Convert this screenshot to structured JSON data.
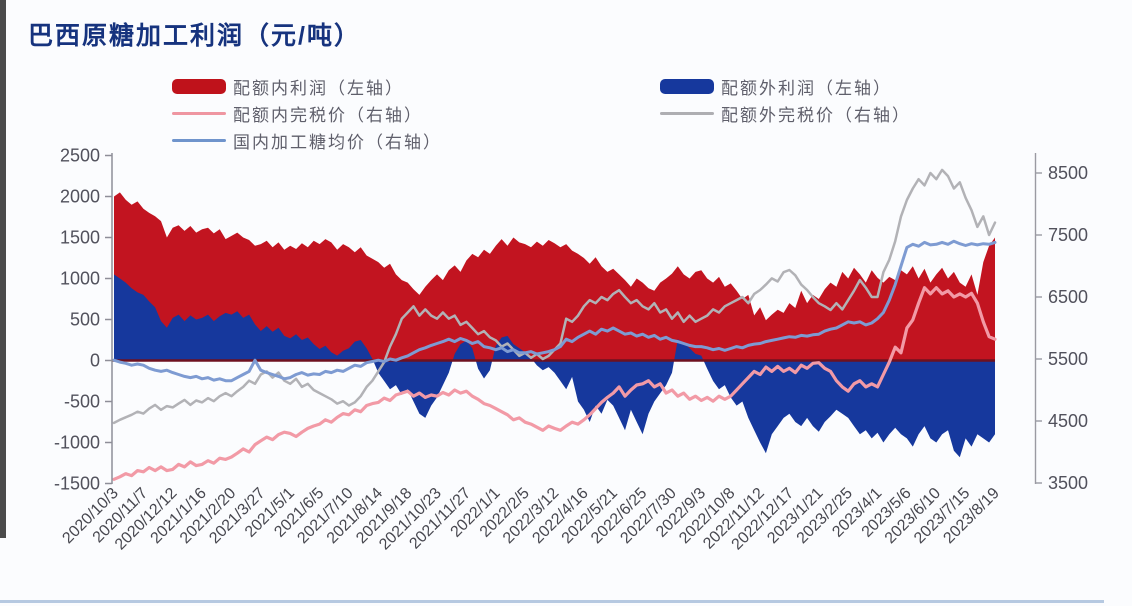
{
  "page": {
    "left_strip_color": "#4b4b4b",
    "bottom_line_color": "#a9c0dc",
    "background": "#fbfcfe"
  },
  "title": {
    "text": "巴西原糖加工利润（元/吨）",
    "color": "#16337e"
  },
  "legend": [
    {
      "label": "配额内利润（左轴）",
      "color": "#bf121b",
      "type": "bar"
    },
    {
      "label": "配额外利润（左轴）",
      "color": "#16389d",
      "type": "bar"
    },
    {
      "label": "配额内完税价（右轴）",
      "color": "#ef96a1",
      "type": "line"
    },
    {
      "label": "配额外完税价（右轴）",
      "color": "#aeaeb2",
      "type": "line"
    },
    {
      "label": "国内加工糖均价（右轴）",
      "color": "#6f94cc",
      "type": "line"
    }
  ],
  "chart_data": {
    "type": "area",
    "title": "巴西原糖加工利润（元/吨）",
    "x_labels": [
      "2020/10/3",
      "2020/11/7",
      "2020/12/12",
      "2021/1/16",
      "2021/2/20",
      "2021/3/27",
      "2021/5/1",
      "2021/6/5",
      "2021/7/10",
      "2021/8/14",
      "2021/9/18",
      "2021/10/23",
      "2021/11/27",
      "2022/1/1",
      "2022/2/5",
      "2022/3/12",
      "2022/4/16",
      "2022/5/21",
      "2022/6/25",
      "2022/7/30",
      "2022/9/3",
      "2022/10/8",
      "2022/11/12",
      "2022/12/17",
      "2023/1/21",
      "2023/2/25",
      "2023/4/1",
      "2023/5/6",
      "2023/6/10",
      "2023/7/15",
      "2023/8/19"
    ],
    "points_per_label": 5,
    "left_axis": {
      "ticks": [
        2500,
        2000,
        1500,
        1000,
        500,
        0,
        -500,
        -1000,
        -1500
      ],
      "range": [
        -1500,
        2500
      ]
    },
    "right_axis": {
      "ticks": [
        8500,
        7500,
        6500,
        5500,
        4500,
        3500
      ],
      "range": [
        3500,
        8500
      ]
    },
    "grid": false,
    "legend_position": "top",
    "series": [
      {
        "name": "配额内利润（左轴）",
        "type": "area",
        "axis": "left",
        "color": "#c21420",
        "values": [
          2000,
          2050,
          1960,
          1900,
          1940,
          1850,
          1800,
          1760,
          1700,
          1500,
          1620,
          1650,
          1580,
          1640,
          1560,
          1600,
          1620,
          1550,
          1600,
          1480,
          1520,
          1560,
          1500,
          1470,
          1400,
          1420,
          1460,
          1380,
          1440,
          1350,
          1400,
          1360,
          1430,
          1380,
          1460,
          1420,
          1480,
          1440,
          1350,
          1420,
          1380,
          1320,
          1380,
          1280,
          1240,
          1200,
          1130,
          1180,
          1050,
          980,
          950,
          870,
          800,
          900,
          980,
          1050,
          980,
          1100,
          1160,
          1080,
          1220,
          1300,
          1260,
          1350,
          1300,
          1400,
          1480,
          1400,
          1500,
          1440,
          1420,
          1380,
          1450,
          1400,
          1470,
          1430,
          1380,
          1420,
          1340,
          1300,
          1250,
          1180,
          1260,
          1150,
          1080,
          1120,
          1050,
          980,
          900,
          1000,
          950,
          880,
          850,
          950,
          1000,
          1060,
          1150,
          1050,
          1000,
          1080,
          1100,
          1000,
          950,
          1020,
          900,
          940,
          850,
          750,
          800,
          550,
          650,
          490,
          560,
          620,
          580,
          700,
          640,
          850,
          700,
          800,
          750,
          870,
          950,
          900,
          1080,
          1000,
          1130,
          1050,
          950,
          1100,
          1010,
          950,
          1020,
          980,
          1100,
          1050,
          1150,
          1000,
          1120,
          950,
          1050,
          1130,
          1000,
          1080,
          950,
          900,
          1050,
          800,
          1200,
          1400,
          1500
        ]
      },
      {
        "name": "配额外利润（左轴）",
        "type": "area",
        "axis": "left",
        "color": "#16389d",
        "values": [
          1050,
          1000,
          950,
          880,
          830,
          800,
          720,
          650,
          480,
          400,
          520,
          560,
          480,
          550,
          500,
          520,
          560,
          480,
          540,
          580,
          560,
          600,
          520,
          560,
          440,
          360,
          420,
          350,
          400,
          300,
          270,
          320,
          250,
          280,
          200,
          140,
          180,
          100,
          60,
          120,
          150,
          230,
          250,
          150,
          20,
          -150,
          -250,
          -350,
          -300,
          -420,
          -350,
          -500,
          -650,
          -700,
          -550,
          -450,
          -300,
          -150,
          80,
          200,
          240,
          150,
          -100,
          -220,
          -120,
          180,
          280,
          300,
          200,
          150,
          100,
          30,
          -60,
          -120,
          -80,
          -150,
          -250,
          -350,
          -200,
          -500,
          -600,
          -750,
          -550,
          -650,
          -480,
          -550,
          -700,
          -850,
          -600,
          -750,
          -900,
          -650,
          -500,
          -400,
          -300,
          -150,
          260,
          220,
          150,
          80,
          60,
          -100,
          -250,
          -350,
          -300,
          -450,
          -550,
          -500,
          -700,
          -850,
          -1000,
          -1130,
          -900,
          -800,
          -700,
          -650,
          -750,
          -800,
          -700,
          -800,
          -870,
          -750,
          -680,
          -600,
          -650,
          -700,
          -800,
          -900,
          -850,
          -950,
          -880,
          -1000,
          -900,
          -820,
          -900,
          -950,
          -1050,
          -900,
          -800,
          -950,
          -1000,
          -900,
          -850,
          -1100,
          -1180,
          -950,
          -1050,
          -900,
          -950,
          -1000,
          -900
        ]
      },
      {
        "name": "配额内完税价（右轴）",
        "type": "line",
        "axis": "right",
        "color": "#f29aa6",
        "values": [
          3560,
          3600,
          3650,
          3620,
          3700,
          3680,
          3750,
          3700,
          3760,
          3700,
          3720,
          3800,
          3760,
          3840,
          3780,
          3800,
          3860,
          3820,
          3900,
          3880,
          3920,
          3980,
          4050,
          4000,
          4120,
          4180,
          4240,
          4200,
          4280,
          4320,
          4300,
          4250,
          4320,
          4380,
          4420,
          4450,
          4520,
          4480,
          4560,
          4620,
          4600,
          4680,
          4650,
          4750,
          4780,
          4800,
          4870,
          4830,
          4920,
          4950,
          4980,
          4900,
          4950,
          4880,
          4920,
          4900,
          4960,
          4920,
          5000,
          4950,
          4980,
          4900,
          4850,
          4780,
          4750,
          4700,
          4650,
          4600,
          4520,
          4550,
          4480,
          4450,
          4400,
          4350,
          4420,
          4380,
          4350,
          4420,
          4480,
          4450,
          4520,
          4600,
          4700,
          4800,
          4880,
          4950,
          5050,
          4900,
          5000,
          5080,
          5100,
          5150,
          5050,
          5100,
          4950,
          5000,
          4900,
          4950,
          4850,
          4900,
          4830,
          4880,
          4820,
          4900,
          4850,
          4900,
          5000,
          5100,
          5200,
          5300,
          5250,
          5370,
          5300,
          5380,
          5300,
          5350,
          5280,
          5400,
          5350,
          5430,
          5440,
          5350,
          5300,
          5150,
          5050,
          4980,
          5100,
          5150,
          5050,
          5100,
          5050,
          5250,
          5450,
          5690,
          5600,
          6000,
          6130,
          6400,
          6650,
          6550,
          6650,
          6550,
          6600,
          6500,
          6550,
          6500,
          6560,
          6400,
          6100,
          5860,
          5820
        ]
      },
      {
        "name": "配额外完税价（右轴）",
        "type": "line",
        "axis": "right",
        "color": "#b2b2b6",
        "values": [
          4470,
          4520,
          4560,
          4600,
          4650,
          4620,
          4700,
          4760,
          4680,
          4740,
          4720,
          4780,
          4840,
          4760,
          4830,
          4800,
          4870,
          4820,
          4900,
          4950,
          4900,
          4980,
          5050,
          5150,
          5100,
          5250,
          5300,
          5200,
          5280,
          5150,
          5100,
          5180,
          5050,
          5100,
          5000,
          4950,
          4900,
          4850,
          4780,
          4820,
          4750,
          4800,
          4900,
          5050,
          5150,
          5300,
          5450,
          5700,
          5900,
          6150,
          6250,
          6350,
          6200,
          6300,
          6200,
          6150,
          6250,
          6150,
          6200,
          6050,
          6100,
          6000,
          5900,
          5950,
          5850,
          5800,
          5700,
          5750,
          5650,
          5550,
          5600,
          5520,
          5580,
          5500,
          5550,
          5650,
          5750,
          6150,
          6100,
          6200,
          6350,
          6450,
          6400,
          6500,
          6450,
          6550,
          6610,
          6500,
          6400,
          6450,
          6350,
          6300,
          6400,
          6250,
          6300,
          6150,
          6250,
          6100,
          6200,
          6100,
          6150,
          6200,
          6300,
          6250,
          6350,
          6400,
          6450,
          6500,
          6400,
          6550,
          6613,
          6700,
          6800,
          6750,
          6900,
          6935,
          6850,
          6700,
          6613,
          6500,
          6400,
          6350,
          6290,
          6400,
          6300,
          6450,
          6600,
          6774,
          6650,
          6500,
          6500,
          6900,
          7100,
          7400,
          7800,
          8065,
          8250,
          8400,
          8300,
          8500,
          8400,
          8550,
          8450,
          8250,
          8350,
          8100,
          7900,
          7630,
          7800,
          7500,
          7700
        ]
      },
      {
        "name": "国内加工糖均价（右轴）",
        "type": "line",
        "axis": "right",
        "color": "#7e9bd2",
        "values": [
          5480,
          5450,
          5430,
          5400,
          5420,
          5400,
          5350,
          5320,
          5300,
          5320,
          5280,
          5250,
          5220,
          5200,
          5220,
          5180,
          5200,
          5160,
          5180,
          5150,
          5150,
          5200,
          5250,
          5300,
          5480,
          5320,
          5280,
          5250,
          5220,
          5180,
          5200,
          5250,
          5280,
          5240,
          5260,
          5250,
          5300,
          5280,
          5320,
          5300,
          5350,
          5400,
          5380,
          5440,
          5460,
          5480,
          5460,
          5500,
          5480,
          5520,
          5550,
          5600,
          5650,
          5680,
          5720,
          5750,
          5780,
          5820,
          5780,
          5830,
          5800,
          5750,
          5780,
          5700,
          5680,
          5650,
          5680,
          5620,
          5650,
          5600,
          5600,
          5620,
          5580,
          5600,
          5620,
          5650,
          5700,
          5820,
          5780,
          5850,
          5900,
          5950,
          5900,
          5980,
          5950,
          6000,
          5950,
          5900,
          5920,
          5870,
          5900,
          5850,
          5880,
          5820,
          5850,
          5800,
          5780,
          5750,
          5720,
          5700,
          5700,
          5680,
          5650,
          5670,
          5640,
          5670,
          5700,
          5680,
          5720,
          5740,
          5750,
          5780,
          5800,
          5820,
          5840,
          5860,
          5850,
          5880,
          5870,
          5890,
          5900,
          5950,
          5980,
          6000,
          6050,
          6100,
          6080,
          6100,
          6050,
          6080,
          6150,
          6250,
          6450,
          6700,
          7000,
          7300,
          7350,
          7320,
          7380,
          7340,
          7350,
          7380,
          7350,
          7400,
          7360,
          7330,
          7360,
          7340,
          7360,
          7350,
          7380
        ]
      }
    ],
    "baseline_color": "#6e1120"
  }
}
